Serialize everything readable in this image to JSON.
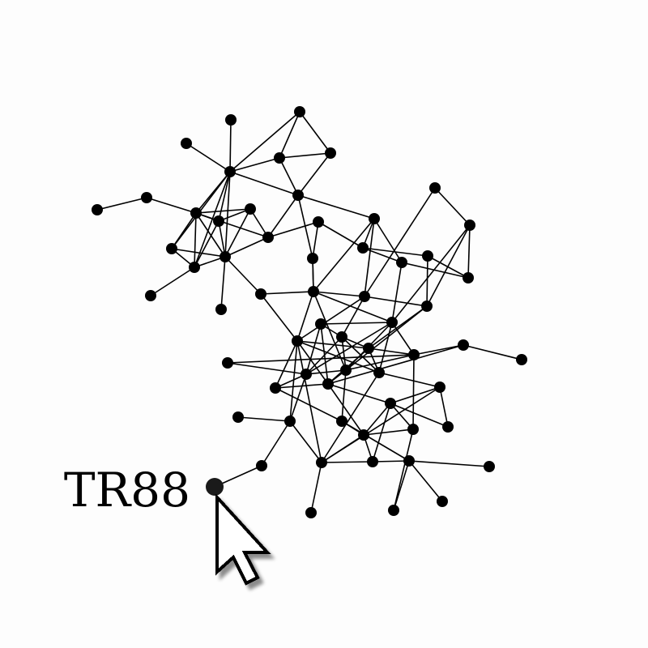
{
  "graph": {
    "highlighted_node": {
      "label": "TR88"
    },
    "node_color": "#000000",
    "edge_color": "#000000",
    "background": "#fdfdfd"
  },
  "cursor": {
    "icon": "pointer-arrow-icon"
  }
}
